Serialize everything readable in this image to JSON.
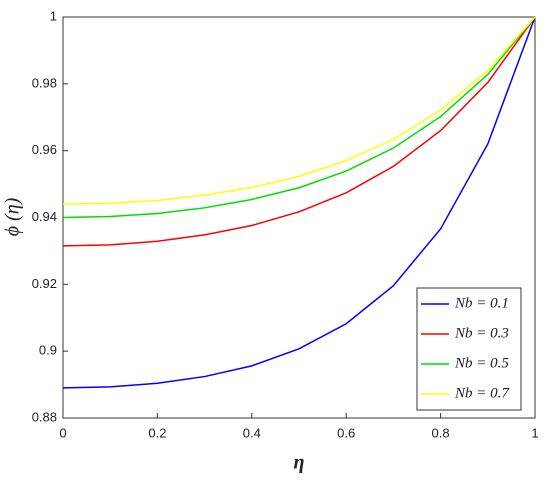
{
  "chart_data": {
    "type": "line",
    "x_label": "η",
    "y_label": "ϕ (η)",
    "x": [
      0,
      0.1,
      0.2,
      0.3,
      0.4,
      0.5,
      0.6,
      0.7,
      0.8,
      0.9,
      1
    ],
    "series": [
      {
        "name": "Nb = 0.1",
        "color": "#0000ff",
        "values": [
          0.889,
          0.8893,
          0.8904,
          0.8924,
          0.8956,
          0.9007,
          0.9082,
          0.9196,
          0.9366,
          0.962,
          1.0
        ]
      },
      {
        "name": "Nb = 0.3",
        "color": "#ff0000",
        "values": [
          0.9315,
          0.9318,
          0.9329,
          0.9348,
          0.9376,
          0.9417,
          0.9474,
          0.9553,
          0.966,
          0.9804,
          1.0
        ]
      },
      {
        "name": "Nb = 0.5",
        "color": "#00dd00",
        "values": [
          0.94,
          0.9403,
          0.9412,
          0.9429,
          0.9454,
          0.9489,
          0.9539,
          0.9608,
          0.9702,
          0.9828,
          1.0
        ]
      },
      {
        "name": "Nb = 0.7",
        "color": "#ffff00",
        "values": [
          0.944,
          0.9443,
          0.9451,
          0.9467,
          0.949,
          0.9523,
          0.957,
          0.9634,
          0.9722,
          0.984,
          1.0
        ]
      }
    ],
    "xlim": [
      0,
      1
    ],
    "xticks": [
      0,
      0.2,
      0.4,
      0.6,
      0.8,
      1
    ],
    "ylim": [
      0.88,
      1
    ],
    "yticks": [
      0.88,
      0.9,
      0.92,
      0.94,
      0.96,
      0.98,
      1
    ],
    "legend": "lower right",
    "grid": false
  }
}
